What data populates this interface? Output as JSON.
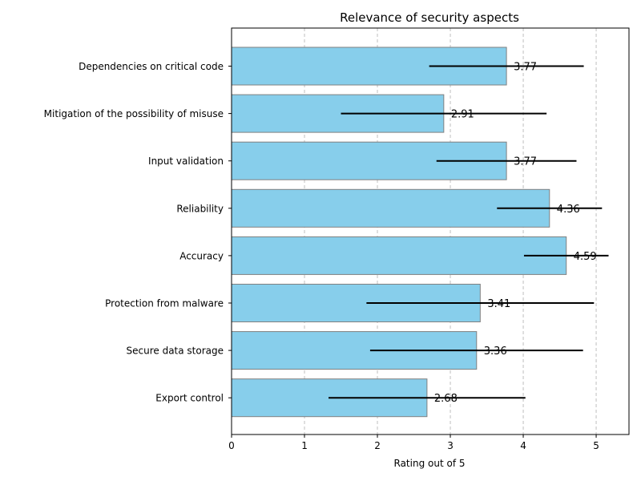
{
  "chart_data": {
    "type": "bar",
    "orientation": "horizontal",
    "title": "Relevance of security aspects",
    "xlabel": "Rating out of 5",
    "ylabel": "",
    "xlim": [
      0,
      5.45
    ],
    "xticks": [
      0,
      1,
      2,
      3,
      4,
      5
    ],
    "grid": "x-dashed",
    "categories": [
      "Dependencies on critical code",
      "Mitigation of the possibility of misuse",
      "Input validation",
      "Reliability",
      "Accuracy",
      "Protection from malware",
      "Secure data storage",
      "Export control"
    ],
    "values": [
      3.77,
      2.91,
      3.77,
      4.36,
      4.59,
      3.41,
      3.36,
      2.68
    ],
    "value_labels": [
      "3.77",
      "2.91",
      "3.77",
      "4.36",
      "4.59",
      "3.41",
      "3.36",
      "2.68"
    ],
    "error": [
      1.06,
      1.41,
      0.96,
      0.72,
      0.58,
      1.56,
      1.46,
      1.35
    ],
    "colors": {
      "bar": "#87ceeb",
      "edge": "#808080",
      "error": "#000000"
    }
  }
}
